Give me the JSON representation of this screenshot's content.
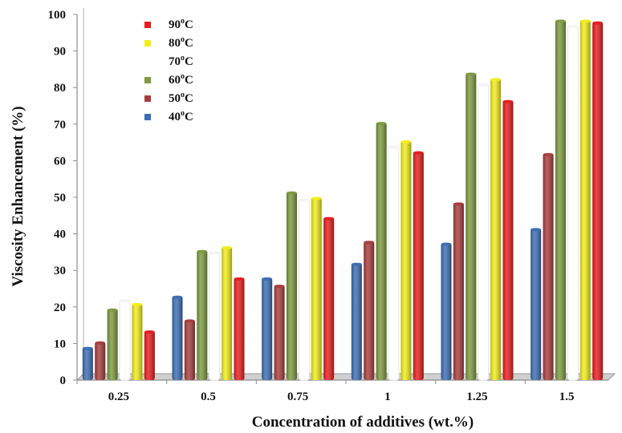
{
  "chart_data": {
    "type": "bar",
    "title": "",
    "xlabel": "Concentration of additives (wt.%)",
    "ylabel": "Viscosity Enhancement (%)",
    "ylim": [
      0,
      100
    ],
    "yticks": [
      0,
      10,
      20,
      30,
      40,
      50,
      60,
      70,
      80,
      90,
      100
    ],
    "categories": [
      "0.25",
      "0.5",
      "0.75",
      "1",
      "1.25",
      "1.5"
    ],
    "grid": false,
    "legend_position": "top-left",
    "series": [
      {
        "name": "40",
        "unit": "oC",
        "color": "#3b6db3",
        "values": [
          9,
          23,
          28,
          32,
          37.5,
          41.5
        ]
      },
      {
        "name": "50",
        "unit": "oC",
        "color": "#a83c3c",
        "values": [
          10.5,
          16.5,
          26,
          38,
          48.5,
          62
        ]
      },
      {
        "name": "60",
        "unit": "oC",
        "color": "#7d9a3f",
        "values": [
          19.5,
          35.5,
          51.5,
          70.5,
          84,
          98.5
        ]
      },
      {
        "name": "70",
        "unit": "oC",
        "color": "#ffffff",
        "values": [
          22,
          35,
          49.5,
          64,
          81,
          97
        ]
      },
      {
        "name": "80",
        "unit": "oC",
        "color": "#f2ee1a",
        "values": [
          21,
          36.5,
          50,
          65.5,
          82.5,
          98.5
        ]
      },
      {
        "name": "90",
        "unit": "oC",
        "color": "#e81c1c",
        "values": [
          13.5,
          28,
          44.5,
          62.5,
          76.5,
          98
        ]
      }
    ]
  }
}
